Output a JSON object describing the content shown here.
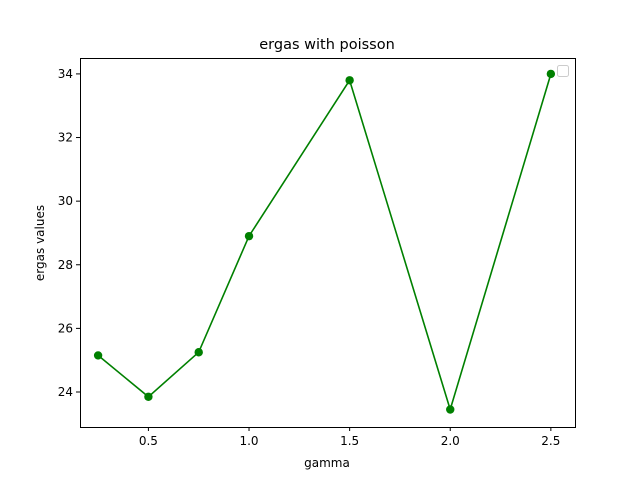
{
  "chart_data": {
    "type": "line",
    "title": "ergas with poisson",
    "xlabel": "gamma",
    "ylabel": "ergas values",
    "xlim": [
      0.16,
      2.62
    ],
    "ylim": [
      22.9,
      34.5
    ],
    "xticks": [
      0.5,
      1.0,
      1.5,
      2.0,
      2.5
    ],
    "xtick_labels": [
      "0.5",
      "1.0",
      "1.5",
      "2.0",
      "2.5"
    ],
    "yticks": [
      24,
      26,
      28,
      30,
      32,
      34
    ],
    "ytick_labels": [
      "24",
      "26",
      "28",
      "30",
      "32",
      "34"
    ],
    "grid": false,
    "legend": {
      "placement": "top-right",
      "entries": []
    },
    "series": [
      {
        "color": "#008000",
        "marker": "circle",
        "x": [
          0.25,
          0.5,
          0.75,
          1.0,
          1.5,
          2.0,
          2.5
        ],
        "y": [
          25.15,
          23.85,
          25.25,
          28.9,
          33.8,
          23.45,
          34.0
        ]
      }
    ]
  }
}
